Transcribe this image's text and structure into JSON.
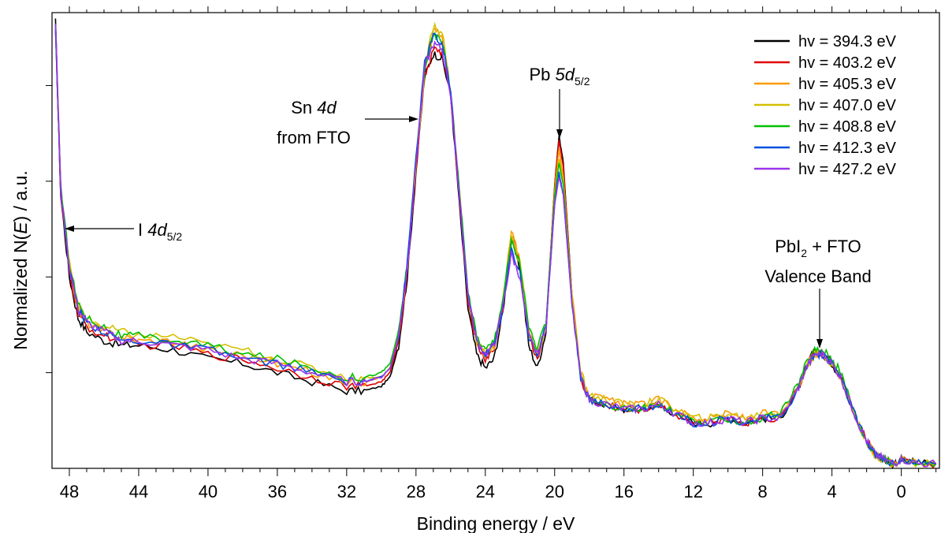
{
  "chart_data": {
    "type": "line",
    "xlabel": "Binding energy / eV",
    "ylabel": "Normalized N(E) / a.u.",
    "ylabel_prefix": "Normalized N(",
    "ylabel_italic": "E",
    "ylabel_suffix": ") / a.u.",
    "x_reversed": true,
    "xlim": [
      49,
      -2.2
    ],
    "ylim": [
      0,
      1
    ],
    "x_tick_labels": [
      "48",
      "44",
      "40",
      "36",
      "32",
      "28",
      "24",
      "20",
      "16",
      "12",
      "8",
      "4",
      "0"
    ],
    "x_ticks": [
      48,
      44,
      40,
      36,
      32,
      28,
      24,
      20,
      16,
      12,
      8,
      4,
      0
    ],
    "y_ticks": [
      0.21,
      0.42,
      0.63,
      0.84
    ],
    "y_tick_labels_shown": false,
    "grid": false,
    "legend_position": "top-right",
    "x": [
      48.8,
      48.5,
      48.0,
      47.5,
      47,
      46,
      45,
      44,
      42,
      40,
      38,
      36,
      34,
      32,
      31,
      30,
      29.5,
      29,
      28.5,
      28,
      27.5,
      27,
      26.5,
      26,
      25.5,
      25,
      24.5,
      24,
      23.5,
      23,
      22.5,
      22,
      21.5,
      21,
      20.5,
      20,
      19.75,
      19.5,
      19,
      18.5,
      18,
      17,
      16,
      15,
      14,
      13,
      12,
      11,
      10,
      9,
      8,
      7,
      6,
      5.5,
      5,
      4.5,
      4,
      3.5,
      3,
      2.5,
      2,
      1.5,
      1,
      0.5,
      0,
      -1,
      -2
    ],
    "series": [
      {
        "name": "hv = 394.3 eV",
        "color": "#000000",
        "values": [
          0.98,
          0.6,
          0.42,
          0.33,
          0.3,
          0.28,
          0.27,
          0.27,
          0.26,
          0.24,
          0.23,
          0.21,
          0.19,
          0.17,
          0.17,
          0.18,
          0.2,
          0.27,
          0.42,
          0.65,
          0.86,
          0.91,
          0.9,
          0.82,
          0.58,
          0.35,
          0.25,
          0.22,
          0.24,
          0.34,
          0.5,
          0.44,
          0.27,
          0.22,
          0.3,
          0.62,
          0.73,
          0.67,
          0.38,
          0.2,
          0.15,
          0.14,
          0.13,
          0.13,
          0.14,
          0.12,
          0.1,
          0.1,
          0.11,
          0.1,
          0.11,
          0.11,
          0.17,
          0.22,
          0.26,
          0.25,
          0.23,
          0.2,
          0.15,
          0.1,
          0.06,
          0.03,
          0.02,
          0.01,
          0.02,
          0.01,
          0.01
        ]
      },
      {
        "name": "hv = 403.2 eV",
        "color": "#e00000",
        "values": [
          0.97,
          0.6,
          0.43,
          0.34,
          0.31,
          0.29,
          0.28,
          0.27,
          0.27,
          0.25,
          0.24,
          0.22,
          0.2,
          0.18,
          0.18,
          0.19,
          0.21,
          0.28,
          0.43,
          0.66,
          0.86,
          0.92,
          0.91,
          0.82,
          0.6,
          0.37,
          0.27,
          0.24,
          0.26,
          0.35,
          0.51,
          0.45,
          0.29,
          0.24,
          0.31,
          0.62,
          0.72,
          0.66,
          0.38,
          0.2,
          0.15,
          0.14,
          0.13,
          0.13,
          0.14,
          0.12,
          0.1,
          0.1,
          0.11,
          0.1,
          0.11,
          0.11,
          0.17,
          0.22,
          0.26,
          0.25,
          0.23,
          0.2,
          0.15,
          0.1,
          0.06,
          0.03,
          0.02,
          0.01,
          0.02,
          0.01,
          0.01
        ]
      },
      {
        "name": "hv = 405.3 eV",
        "color": "#ff9900",
        "values": [
          0.97,
          0.62,
          0.44,
          0.35,
          0.32,
          0.3,
          0.29,
          0.28,
          0.28,
          0.26,
          0.25,
          0.23,
          0.21,
          0.19,
          0.19,
          0.2,
          0.22,
          0.29,
          0.44,
          0.67,
          0.87,
          0.96,
          0.95,
          0.83,
          0.61,
          0.38,
          0.28,
          0.25,
          0.27,
          0.36,
          0.52,
          0.46,
          0.3,
          0.25,
          0.31,
          0.61,
          0.7,
          0.64,
          0.38,
          0.21,
          0.16,
          0.15,
          0.14,
          0.14,
          0.15,
          0.13,
          0.11,
          0.11,
          0.12,
          0.11,
          0.12,
          0.12,
          0.17,
          0.22,
          0.25,
          0.25,
          0.23,
          0.2,
          0.15,
          0.1,
          0.06,
          0.03,
          0.02,
          0.01,
          0.02,
          0.01,
          0.01
        ]
      },
      {
        "name": "hv = 407.0 eV",
        "color": "#d4c000",
        "values": [
          0.97,
          0.62,
          0.45,
          0.36,
          0.33,
          0.31,
          0.3,
          0.29,
          0.29,
          0.27,
          0.26,
          0.24,
          0.22,
          0.2,
          0.2,
          0.2,
          0.22,
          0.29,
          0.44,
          0.67,
          0.88,
          0.97,
          0.96,
          0.83,
          0.61,
          0.38,
          0.28,
          0.25,
          0.27,
          0.36,
          0.51,
          0.45,
          0.3,
          0.25,
          0.31,
          0.6,
          0.68,
          0.63,
          0.37,
          0.21,
          0.16,
          0.15,
          0.14,
          0.14,
          0.15,
          0.13,
          0.11,
          0.11,
          0.12,
          0.11,
          0.12,
          0.12,
          0.17,
          0.22,
          0.25,
          0.25,
          0.23,
          0.2,
          0.15,
          0.1,
          0.06,
          0.03,
          0.02,
          0.01,
          0.02,
          0.01,
          0.01
        ]
      },
      {
        "name": "hv = 408.8 eV",
        "color": "#00c000",
        "values": [
          0.97,
          0.62,
          0.45,
          0.36,
          0.33,
          0.31,
          0.29,
          0.29,
          0.28,
          0.27,
          0.25,
          0.24,
          0.22,
          0.2,
          0.2,
          0.21,
          0.23,
          0.3,
          0.45,
          0.68,
          0.88,
          0.95,
          0.94,
          0.83,
          0.61,
          0.39,
          0.29,
          0.26,
          0.28,
          0.37,
          0.5,
          0.45,
          0.31,
          0.26,
          0.32,
          0.6,
          0.67,
          0.62,
          0.37,
          0.2,
          0.15,
          0.14,
          0.13,
          0.13,
          0.14,
          0.12,
          0.1,
          0.1,
          0.11,
          0.1,
          0.11,
          0.12,
          0.18,
          0.23,
          0.26,
          0.26,
          0.24,
          0.21,
          0.16,
          0.1,
          0.06,
          0.03,
          0.02,
          0.01,
          0.02,
          0.01,
          0.01
        ]
      },
      {
        "name": "hv = 412.3 eV",
        "color": "#0050e0",
        "values": [
          0.97,
          0.61,
          0.44,
          0.35,
          0.32,
          0.3,
          0.28,
          0.28,
          0.27,
          0.26,
          0.24,
          0.23,
          0.21,
          0.19,
          0.19,
          0.2,
          0.22,
          0.29,
          0.45,
          0.68,
          0.89,
          0.95,
          0.93,
          0.83,
          0.6,
          0.38,
          0.28,
          0.25,
          0.27,
          0.35,
          0.48,
          0.43,
          0.29,
          0.25,
          0.31,
          0.58,
          0.65,
          0.6,
          0.36,
          0.2,
          0.15,
          0.14,
          0.13,
          0.13,
          0.14,
          0.12,
          0.1,
          0.1,
          0.11,
          0.1,
          0.11,
          0.11,
          0.17,
          0.22,
          0.25,
          0.25,
          0.23,
          0.2,
          0.15,
          0.1,
          0.06,
          0.03,
          0.02,
          0.01,
          0.02,
          0.01,
          0.01
        ]
      },
      {
        "name": "hv = 427.2 eV",
        "color": "#9933ee",
        "values": [
          0.98,
          0.61,
          0.44,
          0.35,
          0.32,
          0.3,
          0.28,
          0.28,
          0.27,
          0.26,
          0.24,
          0.23,
          0.21,
          0.19,
          0.19,
          0.2,
          0.22,
          0.29,
          0.44,
          0.67,
          0.88,
          0.93,
          0.92,
          0.82,
          0.6,
          0.38,
          0.28,
          0.25,
          0.27,
          0.35,
          0.47,
          0.42,
          0.29,
          0.25,
          0.31,
          0.58,
          0.64,
          0.6,
          0.36,
          0.2,
          0.15,
          0.14,
          0.13,
          0.13,
          0.14,
          0.12,
          0.1,
          0.1,
          0.11,
          0.1,
          0.11,
          0.11,
          0.17,
          0.22,
          0.25,
          0.25,
          0.23,
          0.2,
          0.15,
          0.1,
          0.06,
          0.03,
          0.02,
          0.01,
          0.02,
          0.01,
          0.01
        ]
      }
    ],
    "annotations": {
      "sn": {
        "line1_prefix": "Sn ",
        "line1_italic": "4d",
        "line2": "from FTO"
      },
      "pb5d": {
        "prefix": "Pb ",
        "italic": "5d",
        "sub": "5/2"
      },
      "i4d": {
        "prefix": "I ",
        "italic": "4d",
        "sub": "5/2"
      },
      "vb": {
        "line1_a": "PbI",
        "line1_sub": "2",
        "line1_b": " + FTO",
        "line2": "Valence Band"
      }
    }
  }
}
